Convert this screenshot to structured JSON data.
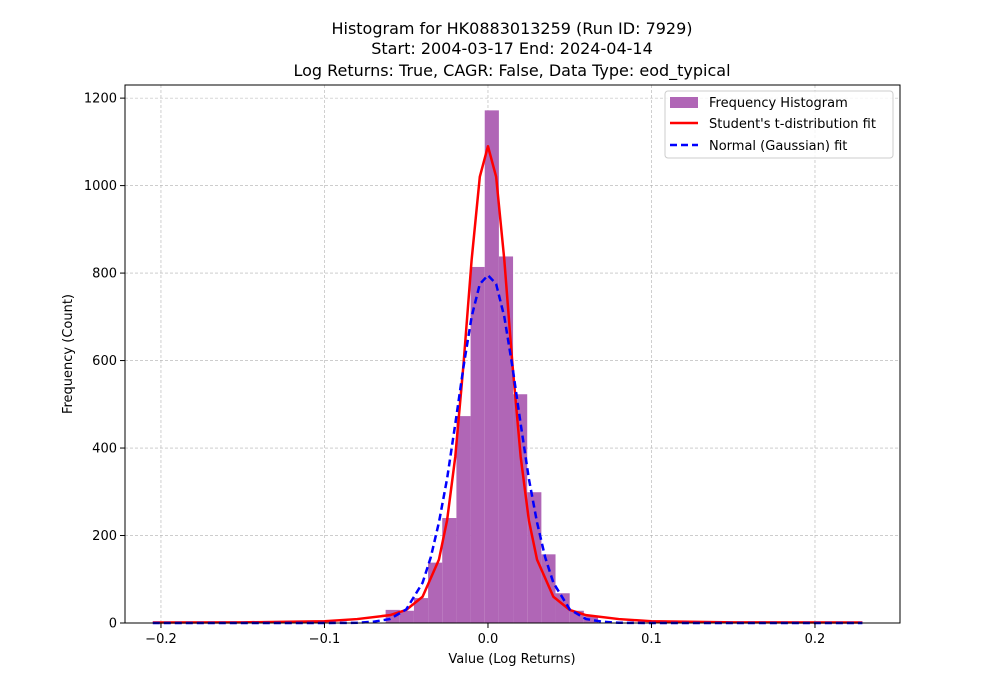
{
  "chart_data": {
    "type": "bar",
    "title_lines": [
      "Histogram for HK0883013259 (Run ID: 7929)",
      "Start: 2004-03-17 End: 2024-04-14",
      "Log Returns: True, CAGR: False, Data Type: eod_typical"
    ],
    "xlabel": "Value (Log Returns)",
    "ylabel": "Frequency (Count)",
    "xlim": [
      -0.222,
      0.252
    ],
    "ylim": [
      0,
      1230
    ],
    "xticks": [
      -0.2,
      -0.1,
      0.0,
      0.1,
      0.2
    ],
    "xtick_labels": [
      "−0.2",
      "−0.1",
      "0.0",
      "0.1",
      "0.2"
    ],
    "yticks": [
      0,
      200,
      400,
      600,
      800,
      1000,
      1200
    ],
    "ytick_labels": [
      "0",
      "200",
      "400",
      "600",
      "800",
      "1000",
      "1200"
    ],
    "grid": true,
    "legend_position": "top-right",
    "histogram": {
      "name": "Frequency Histogram",
      "color": "#b066b6",
      "bin_width": 0.00866,
      "bin_starts": [
        -0.0626,
        -0.05394,
        -0.04528,
        -0.03662,
        -0.02796,
        -0.0193,
        -0.01064,
        -0.00198,
        0.00668,
        0.01534,
        0.024,
        0.03266,
        0.04132,
        0.04998,
        0.05864
      ],
      "counts": [
        30,
        28,
        57,
        138,
        240,
        473,
        814,
        1172,
        838,
        523,
        299,
        157,
        68,
        28,
        15
      ]
    },
    "series": [
      {
        "name": "Student's t-distribution fit",
        "color": "#ff0000",
        "style": "solid",
        "x": [
          -0.205,
          -0.15,
          -0.1,
          -0.08,
          -0.06,
          -0.05,
          -0.04,
          -0.03,
          -0.025,
          -0.02,
          -0.015,
          -0.01,
          -0.005,
          0.0,
          0.005,
          0.01,
          0.015,
          0.02,
          0.025,
          0.03,
          0.04,
          0.05,
          0.06,
          0.08,
          0.1,
          0.15,
          0.229
        ],
        "y": [
          1,
          1.5,
          4,
          9,
          18,
          30,
          60,
          145,
          235,
          380,
          590,
          830,
          1020,
          1090,
          1020,
          830,
          590,
          380,
          235,
          145,
          60,
          30,
          18,
          9,
          4,
          1.5,
          1
        ]
      },
      {
        "name": "Normal (Gaussian) fit",
        "color": "#0000ff",
        "style": "dashed",
        "x": [
          -0.205,
          -0.1,
          -0.08,
          -0.07,
          -0.06,
          -0.05,
          -0.04,
          -0.035,
          -0.03,
          -0.025,
          -0.02,
          -0.015,
          -0.01,
          -0.005,
          0.0,
          0.005,
          0.01,
          0.015,
          0.02,
          0.025,
          0.03,
          0.035,
          0.04,
          0.05,
          0.06,
          0.07,
          0.08,
          0.1,
          0.229
        ],
        "y": [
          0,
          0,
          0.5,
          3,
          9,
          31,
          92,
          150,
          230,
          330,
          455,
          585,
          700,
          775,
          795,
          775,
          700,
          585,
          455,
          330,
          230,
          150,
          92,
          31,
          9,
          3,
          0.5,
          0,
          0
        ]
      }
    ]
  }
}
